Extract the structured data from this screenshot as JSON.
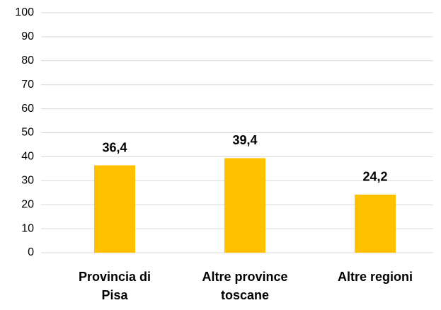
{
  "chart_data": {
    "type": "bar",
    "categories": [
      "Provincia di Pisa",
      "Altre province toscane",
      "Altre regioni"
    ],
    "values": [
      36.4,
      39.4,
      24.2
    ],
    "value_labels": [
      "36,4",
      "39,4",
      "24,2"
    ],
    "color": "#ffc000",
    "ylim": [
      0,
      100
    ],
    "yticks": [
      0,
      10,
      20,
      30,
      40,
      50,
      60,
      70,
      80,
      90,
      100
    ],
    "grid": true
  }
}
